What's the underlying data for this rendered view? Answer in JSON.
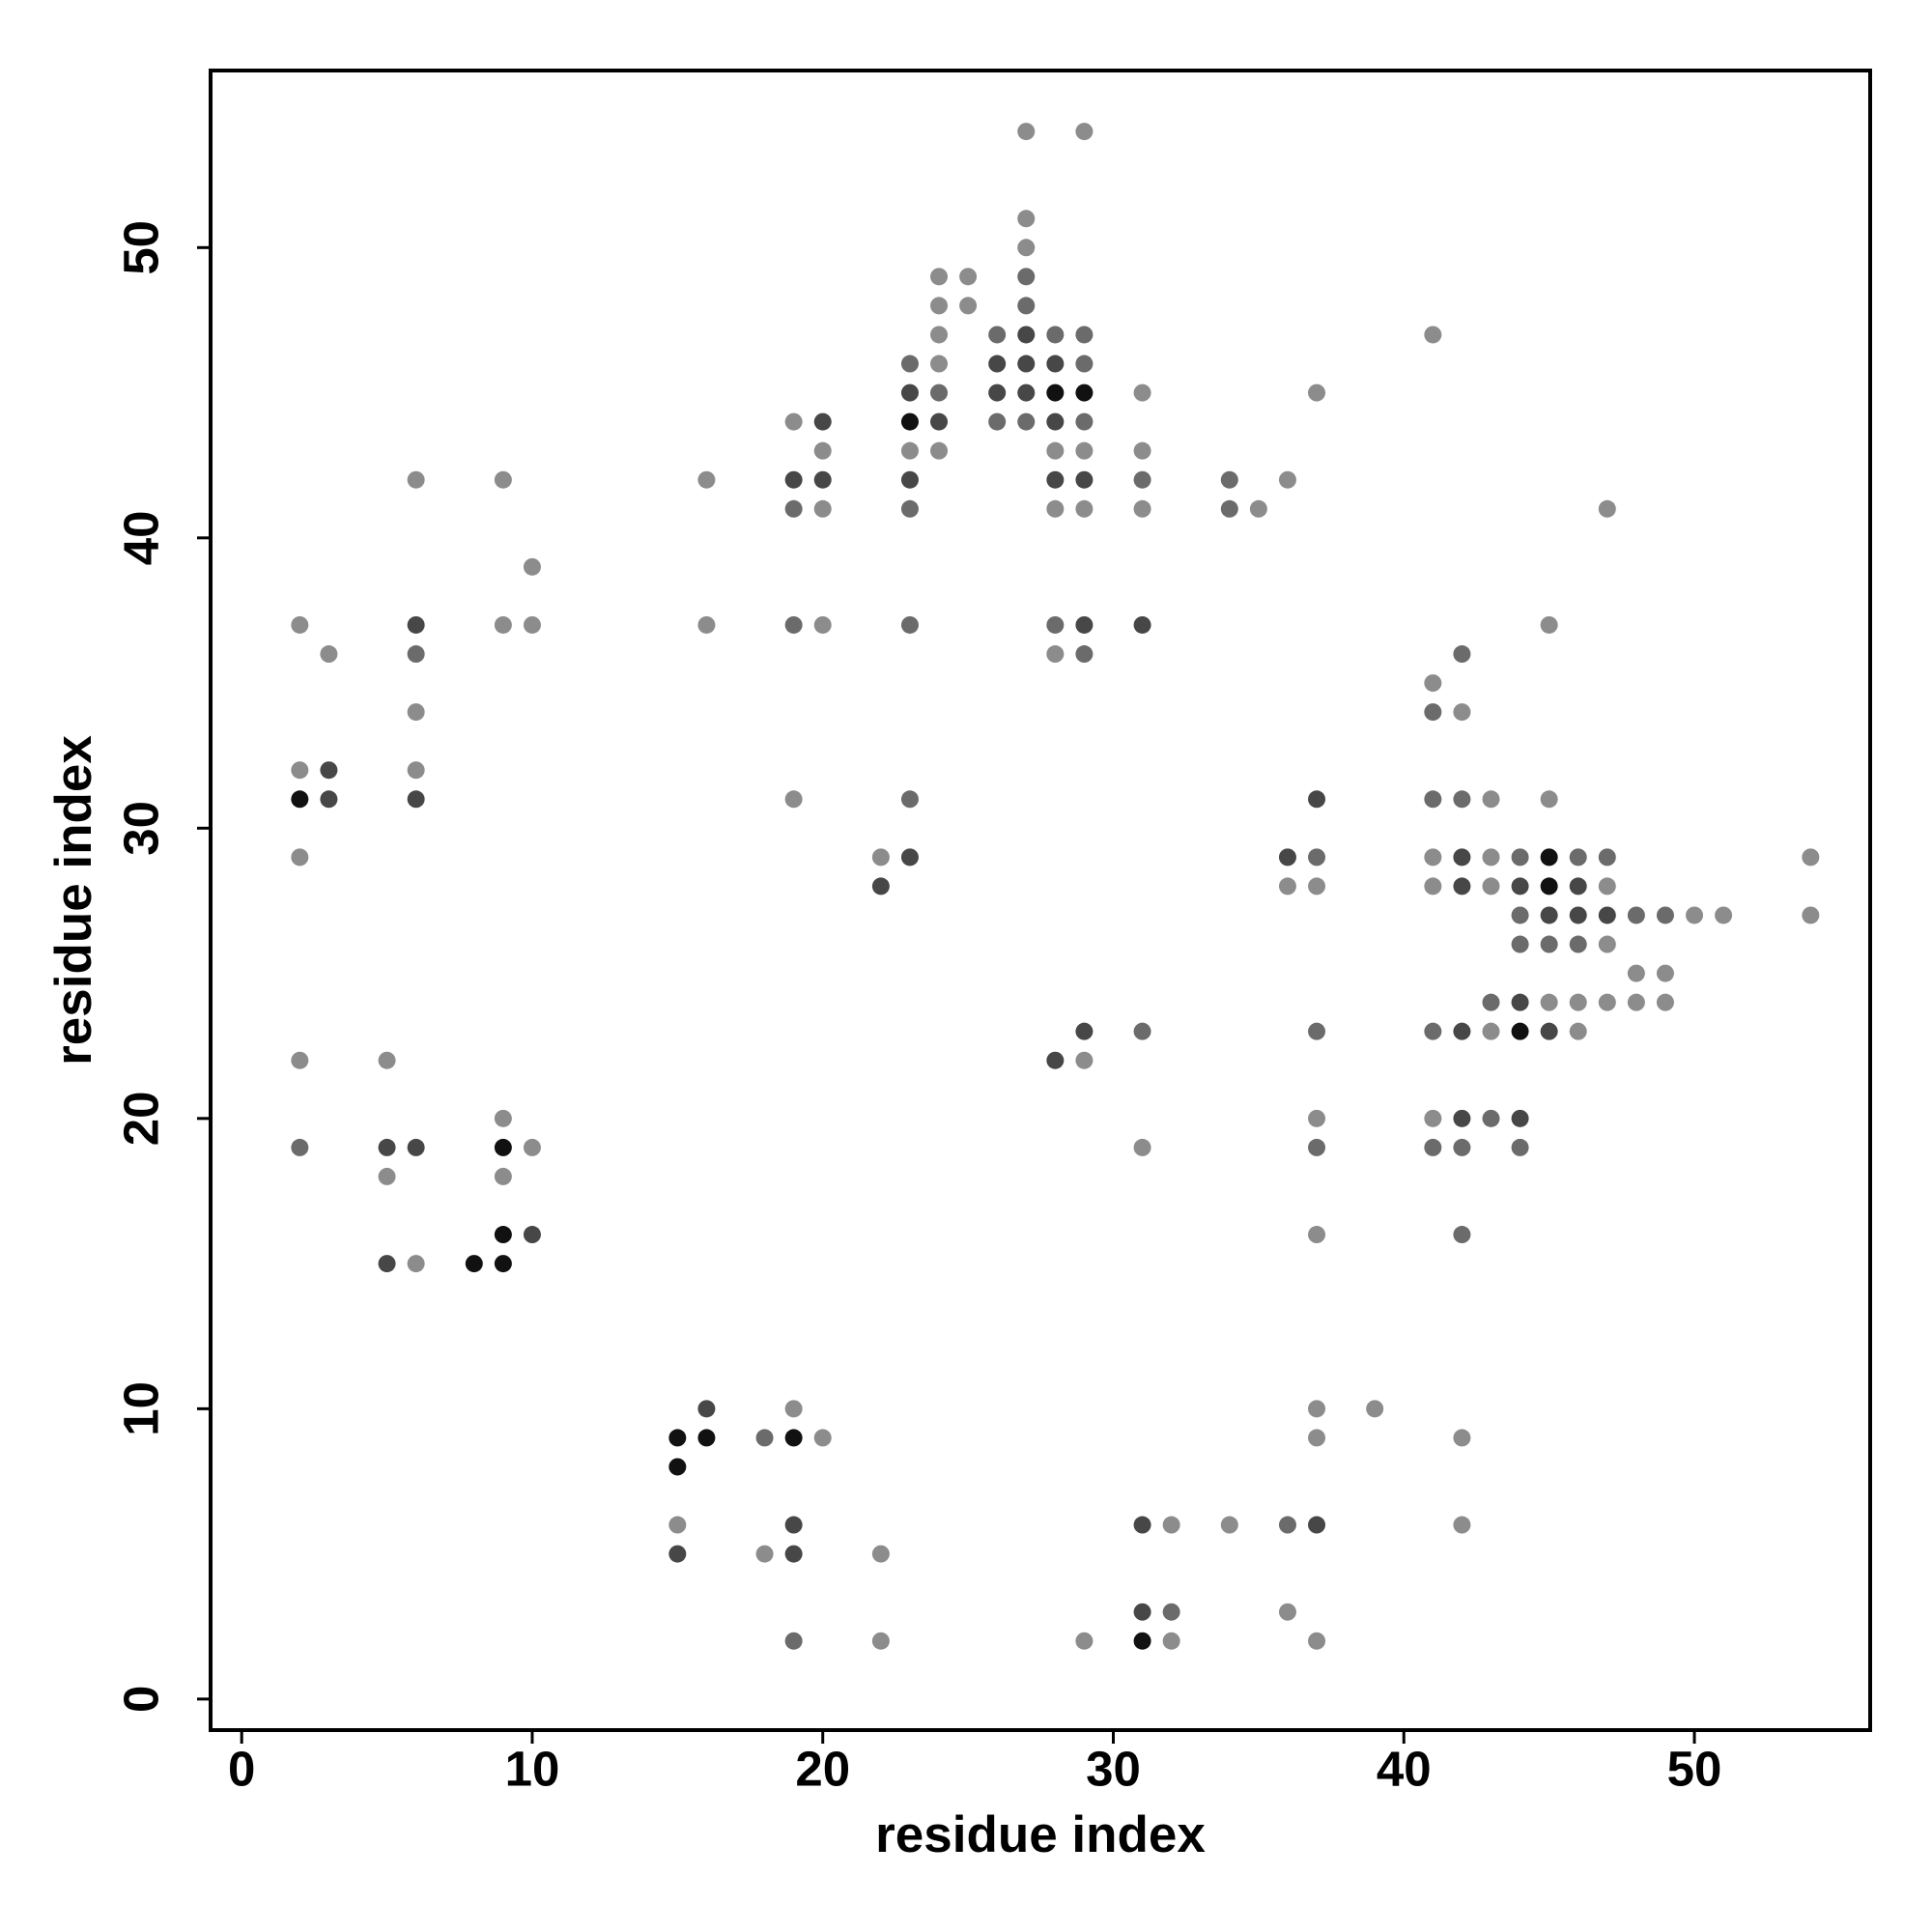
{
  "chart_data": {
    "type": "scatter",
    "xlabel": "residue index",
    "ylabel": "residue index",
    "xlim": [
      -1.07,
      56.05
    ],
    "ylim": [
      -1.07,
      56.1
    ],
    "xticks": [
      0,
      10,
      20,
      30,
      40,
      50
    ],
    "yticks": [
      0,
      10,
      20,
      30,
      40,
      50
    ],
    "x": [
      2,
      2,
      2,
      2,
      2,
      2,
      3,
      3,
      3,
      5,
      5,
      5,
      5,
      6,
      6,
      6,
      6,
      6,
      6,
      6,
      6,
      8,
      9,
      9,
      9,
      9,
      9,
      9,
      9,
      10,
      10,
      10,
      10,
      15,
      15,
      15,
      15,
      16,
      16,
      16,
      16,
      18,
      18,
      19,
      19,
      19,
      19,
      19,
      19,
      19,
      19,
      19,
      19,
      20,
      20,
      20,
      20,
      20,
      20,
      22,
      22,
      22,
      22,
      23,
      23,
      23,
      23,
      23,
      23,
      23,
      23,
      23,
      24,
      24,
      24,
      24,
      24,
      24,
      24,
      25,
      25,
      26,
      26,
      26,
      26,
      27,
      27,
      27,
      27,
      27,
      27,
      27,
      27,
      27,
      28,
      28,
      28,
      28,
      28,
      28,
      28,
      28,
      28,
      28,
      29,
      29,
      29,
      29,
      29,
      29,
      29,
      29,
      29,
      29,
      29,
      29,
      29,
      31,
      31,
      31,
      31,
      31,
      31,
      31,
      31,
      31,
      31,
      32,
      32,
      32,
      34,
      34,
      34,
      35,
      36,
      36,
      36,
      36,
      36,
      37,
      37,
      37,
      37,
      37,
      37,
      37,
      37,
      37,
      37,
      37,
      37,
      39,
      41,
      41,
      41,
      41,
      41,
      41,
      41,
      41,
      41,
      42,
      42,
      42,
      42,
      42,
      42,
      42,
      42,
      42,
      42,
      42,
      43,
      43,
      43,
      43,
      43,
      43,
      44,
      44,
      44,
      44,
      44,
      44,
      44,
      44,
      45,
      45,
      45,
      45,
      45,
      45,
      45,
      45,
      46,
      46,
      46,
      46,
      46,
      46,
      47,
      47,
      47,
      47,
      47,
      47,
      48,
      48,
      48,
      49,
      49,
      49,
      50,
      51,
      54,
      54
    ],
    "values": [
      37,
      32,
      31,
      29,
      22,
      19,
      36,
      32,
      31,
      22,
      19,
      18,
      15,
      42,
      37,
      36,
      34,
      32,
      31,
      19,
      15,
      15,
      42,
      37,
      20,
      19,
      18,
      16,
      15,
      39,
      37,
      19,
      16,
      9,
      8,
      6,
      5,
      42,
      37,
      10,
      9,
      9,
      5,
      44,
      42,
      41,
      37,
      31,
      10,
      9,
      6,
      5,
      2,
      44,
      43,
      42,
      41,
      37,
      9,
      29,
      28,
      5,
      2,
      46,
      45,
      44,
      43,
      42,
      41,
      37,
      31,
      29,
      49,
      48,
      47,
      46,
      45,
      44,
      43,
      49,
      48,
      47,
      46,
      45,
      44,
      54,
      51,
      50,
      49,
      48,
      47,
      46,
      45,
      44,
      47,
      46,
      45,
      44,
      43,
      42,
      41,
      37,
      36,
      22,
      54,
      47,
      46,
      45,
      44,
      43,
      42,
      41,
      37,
      36,
      23,
      22,
      2,
      45,
      43,
      42,
      41,
      37,
      23,
      19,
      6,
      3,
      2,
      6,
      3,
      2,
      42,
      41,
      6,
      41,
      42,
      29,
      28,
      6,
      3,
      45,
      31,
      29,
      28,
      23,
      20,
      19,
      16,
      10,
      9,
      6,
      2,
      10,
      47,
      35,
      34,
      31,
      29,
      28,
      23,
      20,
      19,
      36,
      34,
      31,
      29,
      28,
      23,
      20,
      19,
      16,
      9,
      6,
      31,
      29,
      28,
      24,
      23,
      20,
      29,
      28,
      27,
      26,
      24,
      23,
      20,
      19,
      37,
      31,
      29,
      28,
      27,
      26,
      24,
      23,
      29,
      28,
      27,
      26,
      24,
      23,
      41,
      29,
      28,
      27,
      26,
      24,
      27,
      25,
      24,
      27,
      25,
      24,
      27,
      27,
      29,
      27
    ],
    "colors": [
      "#8c8c8c",
      "#8c8c8c",
      "#111111",
      "#8c8c8c",
      "#8c8c8c",
      "#6b6b6b",
      "#8c8c8c",
      "#474747",
      "#474747",
      "#8c8c8c",
      "#474747",
      "#8c8c8c",
      "#474747",
      "#8c8c8c",
      "#474747",
      "#6b6b6b",
      "#8c8c8c",
      "#8c8c8c",
      "#474747",
      "#474747",
      "#8c8c8c",
      "#111111",
      "#8c8c8c",
      "#8c8c8c",
      "#8c8c8c",
      "#111111",
      "#8c8c8c",
      "#111111",
      "#111111",
      "#8c8c8c",
      "#8c8c8c",
      "#8c8c8c",
      "#474747",
      "#111111",
      "#111111",
      "#8c8c8c",
      "#474747",
      "#8c8c8c",
      "#8c8c8c",
      "#474747",
      "#111111",
      "#6b6b6b",
      "#8c8c8c",
      "#8c8c8c",
      "#474747",
      "#6b6b6b",
      "#6b6b6b",
      "#8c8c8c",
      "#8c8c8c",
      "#111111",
      "#474747",
      "#474747",
      "#6b6b6b",
      "#474747",
      "#8c8c8c",
      "#474747",
      "#8c8c8c",
      "#8c8c8c",
      "#8c8c8c",
      "#8c8c8c",
      "#474747",
      "#8c8c8c",
      "#8c8c8c",
      "#6b6b6b",
      "#474747",
      "#111111",
      "#8c8c8c",
      "#474747",
      "#6b6b6b",
      "#6b6b6b",
      "#6b6b6b",
      "#474747",
      "#8c8c8c",
      "#8c8c8c",
      "#8c8c8c",
      "#8c8c8c",
      "#6b6b6b",
      "#474747",
      "#8c8c8c",
      "#8c8c8c",
      "#8c8c8c",
      "#6b6b6b",
      "#474747",
      "#474747",
      "#6b6b6b",
      "#8c8c8c",
      "#8c8c8c",
      "#8c8c8c",
      "#6b6b6b",
      "#6b6b6b",
      "#474747",
      "#474747",
      "#474747",
      "#6b6b6b",
      "#6b6b6b",
      "#474747",
      "#111111",
      "#474747",
      "#8c8c8c",
      "#474747",
      "#8c8c8c",
      "#6b6b6b",
      "#8c8c8c",
      "#474747",
      "#8c8c8c",
      "#6b6b6b",
      "#6b6b6b",
      "#111111",
      "#6b6b6b",
      "#8c8c8c",
      "#474747",
      "#8c8c8c",
      "#474747",
      "#6b6b6b",
      "#474747",
      "#8c8c8c",
      "#8c8c8c",
      "#8c8c8c",
      "#8c8c8c",
      "#6b6b6b",
      "#8c8c8c",
      "#474747",
      "#6b6b6b",
      "#8c8c8c",
      "#474747",
      "#474747",
      "#111111",
      "#8c8c8c",
      "#6b6b6b",
      "#8c8c8c",
      "#6b6b6b",
      "#6b6b6b",
      "#8c8c8c",
      "#8c8c8c",
      "#8c8c8c",
      "#474747",
      "#8c8c8c",
      "#6b6b6b",
      "#8c8c8c",
      "#8c8c8c",
      "#474747",
      "#6b6b6b",
      "#8c8c8c",
      "#6b6b6b",
      "#8c8c8c",
      "#6b6b6b",
      "#8c8c8c",
      "#8c8c8c",
      "#8c8c8c",
      "#474747",
      "#8c8c8c",
      "#8c8c8c",
      "#8c8c8c",
      "#8c8c8c",
      "#6b6b6b",
      "#6b6b6b",
      "#8c8c8c",
      "#8c8c8c",
      "#6b6b6b",
      "#8c8c8c",
      "#6b6b6b",
      "#6b6b6b",
      "#8c8c8c",
      "#6b6b6b",
      "#474747",
      "#474747",
      "#474747",
      "#474747",
      "#6b6b6b",
      "#6b6b6b",
      "#8c8c8c",
      "#8c8c8c",
      "#8c8c8c",
      "#8c8c8c",
      "#8c8c8c",
      "#6b6b6b",
      "#8c8c8c",
      "#6b6b6b",
      "#6b6b6b",
      "#474747",
      "#6b6b6b",
      "#6b6b6b",
      "#474747",
      "#111111",
      "#474747",
      "#6b6b6b",
      "#8c8c8c",
      "#8c8c8c",
      "#111111",
      "#111111",
      "#474747",
      "#6b6b6b",
      "#8c8c8c",
      "#474747",
      "#6b6b6b",
      "#474747",
      "#474747",
      "#6b6b6b",
      "#8c8c8c",
      "#8c8c8c",
      "#8c8c8c",
      "#6b6b6b",
      "#8c8c8c",
      "#474747",
      "#8c8c8c",
      "#8c8c8c",
      "#6b6b6b",
      "#8c8c8c",
      "#8c8c8c",
      "#6b6b6b",
      "#8c8c8c",
      "#8c8c8c",
      "#8c8c8c",
      "#8c8c8c",
      "#8c8c8c",
      "#8c8c8c"
    ]
  }
}
